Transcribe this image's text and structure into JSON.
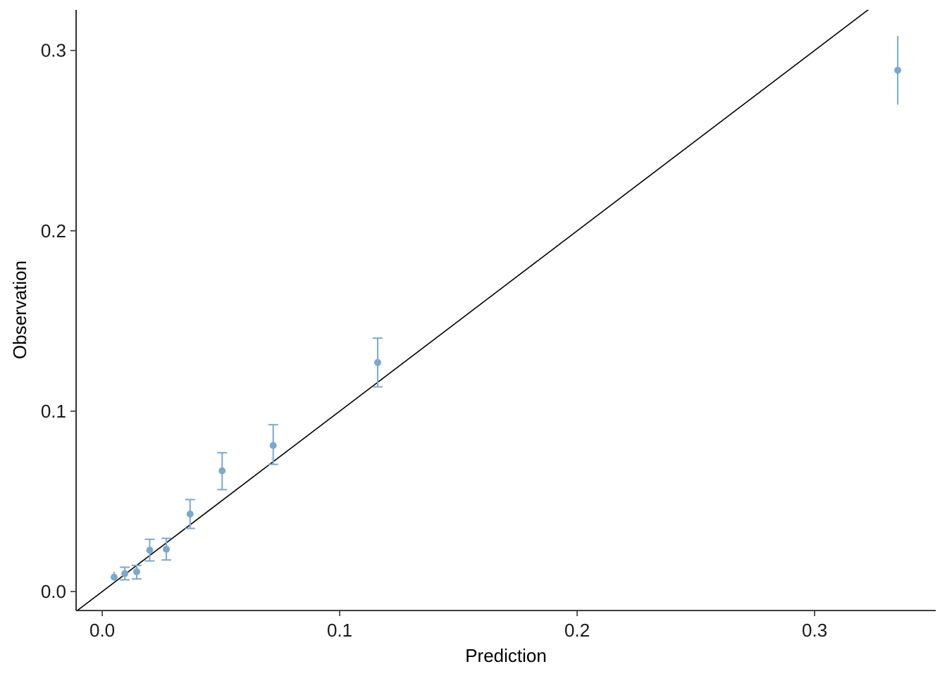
{
  "chart_data": {
    "type": "scatter",
    "title": "",
    "xlabel": "Prediction",
    "ylabel": "Observation",
    "xlim": [
      -0.011,
      0.351
    ],
    "ylim": [
      -0.0105,
      0.3225
    ],
    "x_ticks": [
      0.0,
      0.1,
      0.2,
      0.3
    ],
    "x_tick_labels": [
      "0.0",
      "0.1",
      "0.2",
      "0.3"
    ],
    "y_ticks": [
      0.0,
      0.1,
      0.2,
      0.3
    ],
    "y_tick_labels": [
      "0.0",
      "0.1",
      "0.2",
      "0.3"
    ],
    "grid": false,
    "legend": "none",
    "reference_line": {
      "slope": 1,
      "intercept": 0,
      "color": "#000000"
    },
    "point_color": "#7BA9CE",
    "points": [
      {
        "x": 0.005,
        "y": 0.008,
        "lower": 0.006,
        "upper": 0.011,
        "cap": false
      },
      {
        "x": 0.0095,
        "y": 0.01,
        "lower": 0.0065,
        "upper": 0.0135,
        "cap": true
      },
      {
        "x": 0.0145,
        "y": 0.011,
        "lower": 0.007,
        "upper": 0.0145,
        "cap": true
      },
      {
        "x": 0.02,
        "y": 0.023,
        "lower": 0.017,
        "upper": 0.029,
        "cap": true
      },
      {
        "x": 0.027,
        "y": 0.0235,
        "lower": 0.0175,
        "upper": 0.0295,
        "cap": true
      },
      {
        "x": 0.037,
        "y": 0.043,
        "lower": 0.035,
        "upper": 0.051,
        "cap": true
      },
      {
        "x": 0.0505,
        "y": 0.067,
        "lower": 0.0565,
        "upper": 0.077,
        "cap": true
      },
      {
        "x": 0.072,
        "y": 0.081,
        "lower": 0.0705,
        "upper": 0.0925,
        "cap": true
      },
      {
        "x": 0.116,
        "y": 0.127,
        "lower": 0.1135,
        "upper": 0.1405,
        "cap": true
      },
      {
        "x": 0.335,
        "y": 0.289,
        "lower": 0.27,
        "upper": 0.308,
        "cap": false
      }
    ]
  }
}
